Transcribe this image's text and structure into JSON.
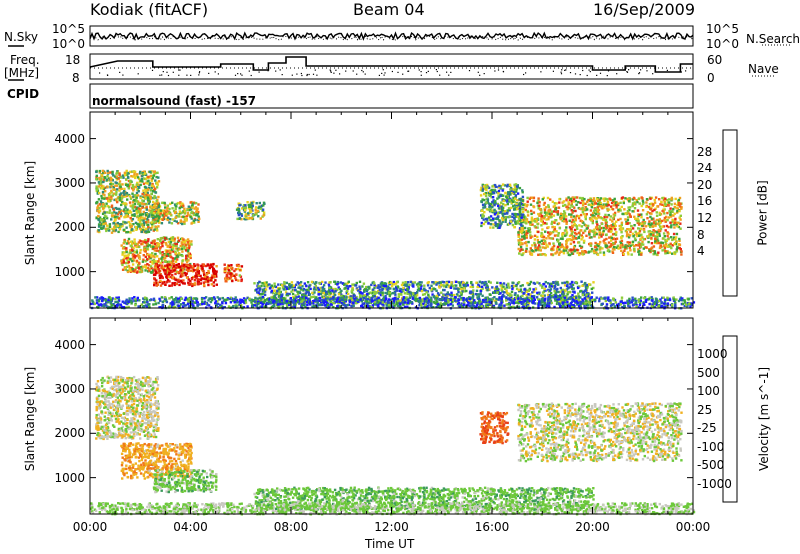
{
  "header": {
    "station": "Kodiak (fitACF)",
    "beam": "Beam 04",
    "date": "16/Sep/2009"
  },
  "panels": {
    "nsky_label": "N.Sky",
    "nsearch_label": "N.Search",
    "nsky_ticks": [
      "10^5",
      "10^0"
    ],
    "nsearch_ticks": [
      "10^5",
      "10^0"
    ],
    "freq_label": "Freq.",
    "freq_unit": "[MHz]",
    "freq_ticks": [
      "18",
      "8"
    ],
    "nave_label": "Nave",
    "nave_ticks": [
      "60",
      "0"
    ],
    "cpid_label": "CPID",
    "cpid_text": "normalsound (fast) -157"
  },
  "chart_data": [
    {
      "type": "heatmap",
      "name": "power",
      "ylabel": "Slant Range [km]",
      "ylim": [
        180,
        4600
      ],
      "yticks": [
        "4000",
        "3000",
        "2000",
        "1000"
      ],
      "colorbar": {
        "label": "Power [dB]",
        "ticks": [
          "28",
          "24",
          "20",
          "16",
          "12",
          "8",
          "4"
        ],
        "colors": [
          "#1a1aff",
          "#2850c8",
          "#2e8a78",
          "#3aa33a",
          "#8ccc3a",
          "#e8d020",
          "#f0a020",
          "#f06018",
          "#e82818",
          "#d80000"
        ]
      },
      "regions": [
        {
          "x": [
            0.2,
            2.7
          ],
          "y": [
            1900,
            3300
          ],
          "value": 14
        },
        {
          "x": [
            1.2,
            4.0
          ],
          "y": [
            1000,
            1800
          ],
          "value": 18
        },
        {
          "x": [
            2.5,
            5.0
          ],
          "y": [
            700,
            1200
          ],
          "value": 27
        },
        {
          "x": [
            5.3,
            6.0
          ],
          "y": [
            800,
            1200
          ],
          "value": 22
        },
        {
          "x": [
            2.4,
            4.3
          ],
          "y": [
            2100,
            2600
          ],
          "value": 15
        },
        {
          "x": [
            5.8,
            6.9
          ],
          "y": [
            2200,
            2600
          ],
          "value": 12
        },
        {
          "x": [
            6.5,
            20.0
          ],
          "y": [
            300,
            800
          ],
          "value": 9
        },
        {
          "x": [
            17.0,
            23.5
          ],
          "y": [
            1400,
            2700
          ],
          "value": 17
        },
        {
          "x": [
            15.5,
            17.2
          ],
          "y": [
            2000,
            3000
          ],
          "value": 10
        },
        {
          "x": [
            0,
            24
          ],
          "y": [
            200,
            450
          ],
          "value": 6
        }
      ]
    },
    {
      "type": "heatmap",
      "name": "velocity",
      "xlabel": "Time UT",
      "ylabel": "Slant Range [km]",
      "ylim": [
        180,
        4600
      ],
      "xticks": [
        "00:00",
        "04:00",
        "08:00",
        "12:00",
        "16:00",
        "20:00",
        "00:00"
      ],
      "yticks": [
        "4000",
        "3000",
        "2000",
        "1000"
      ],
      "colorbar": {
        "label": "Velocity [m s^-1]",
        "ticks": [
          "1000",
          "500",
          "100",
          "25",
          "-25",
          "-100",
          "-500",
          "-1000"
        ],
        "colors": [
          "#1a44ff",
          "#2e6fa8",
          "#3a9a5a",
          "#6cc83a",
          "#c8c8c0",
          "#f0b020",
          "#f07818",
          "#e84018",
          "#d80000"
        ]
      },
      "regions": [
        {
          "x": [
            0.2,
            2.7
          ],
          "y": [
            1900,
            3300
          ],
          "value": 0
        },
        {
          "x": [
            1.2,
            4.0
          ],
          "y": [
            1000,
            1800
          ],
          "value": -80
        },
        {
          "x": [
            2.5,
            5.0
          ],
          "y": [
            700,
            1200
          ],
          "value": 60
        },
        {
          "x": [
            6.5,
            20.0
          ],
          "y": [
            300,
            800
          ],
          "value": 70
        },
        {
          "x": [
            17.0,
            23.5
          ],
          "y": [
            1400,
            2700
          ],
          "value": 0
        },
        {
          "x": [
            15.5,
            16.6
          ],
          "y": [
            1800,
            2500
          ],
          "value": -500
        },
        {
          "x": [
            0,
            24
          ],
          "y": [
            200,
            450
          ],
          "value": 40
        }
      ]
    }
  ]
}
